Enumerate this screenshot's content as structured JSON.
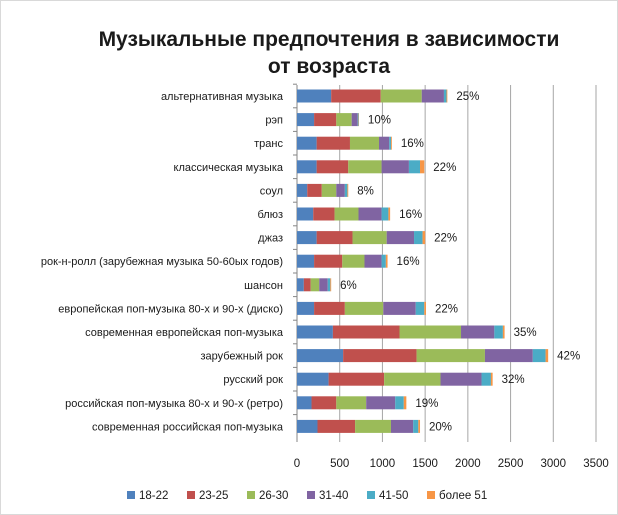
{
  "chart_data": {
    "type": "bar",
    "orientation": "horizontal",
    "stacked": true,
    "title_lines": [
      "Музыкальные предпочтения в зависимости",
      "от возраста"
    ],
    "categories": [
      "альтернативная музыка",
      "рэп",
      "транс",
      "классическая музыка",
      "соул",
      "блюз",
      "джаз",
      "рок-н-ролл (зарубежная музыка 50-60ых годов)",
      "шансон",
      "европейская поп-музыка 80-х и 90-х (диско)",
      "современная европейская поп-музыка",
      "зарубежный рок",
      "русский рок",
      "российская поп-музыка 80-х и 90-х (ретро)",
      "современная российская поп-музыка"
    ],
    "series": [
      {
        "name": "18-22",
        "color": "#4F81BD",
        "values": [
          400,
          200,
          230,
          230,
          120,
          190,
          230,
          200,
          80,
          200,
          420,
          540,
          370,
          170,
          240
        ]
      },
      {
        "name": "23-25",
        "color": "#C0504D",
        "values": [
          580,
          260,
          390,
          370,
          170,
          250,
          420,
          330,
          80,
          360,
          780,
          860,
          650,
          290,
          440
        ]
      },
      {
        "name": "26-30",
        "color": "#9BBB59",
        "values": [
          480,
          180,
          340,
          390,
          170,
          280,
          400,
          260,
          100,
          450,
          720,
          800,
          660,
          350,
          420
        ]
      },
      {
        "name": "31-40",
        "color": "#8064A2",
        "values": [
          260,
          70,
          120,
          320,
          100,
          270,
          320,
          200,
          100,
          380,
          390,
          560,
          480,
          340,
          260
        ]
      },
      {
        "name": "41-50",
        "color": "#4BACC6",
        "values": [
          30,
          10,
          20,
          130,
          30,
          80,
          100,
          50,
          30,
          100,
          100,
          150,
          110,
          100,
          60
        ]
      },
      {
        "name": "более 51",
        "color": "#F79646",
        "values": [
          10,
          5,
          10,
          50,
          10,
          20,
          30,
          20,
          10,
          20,
          20,
          30,
          20,
          30,
          20
        ]
      }
    ],
    "data_labels": [
      "25%",
      "10%",
      "16%",
      "22%",
      "8%",
      "16%",
      "22%",
      "16%",
      "6%",
      "22%",
      "35%",
      "42%",
      "32%",
      "19%",
      "20%"
    ],
    "x_ticks": [
      "0",
      "500",
      "1000",
      "1500",
      "2000",
      "2500",
      "3000",
      "3500"
    ],
    "xlim": [
      0,
      3500
    ],
    "grid": true,
    "legend_position": "bottom"
  }
}
